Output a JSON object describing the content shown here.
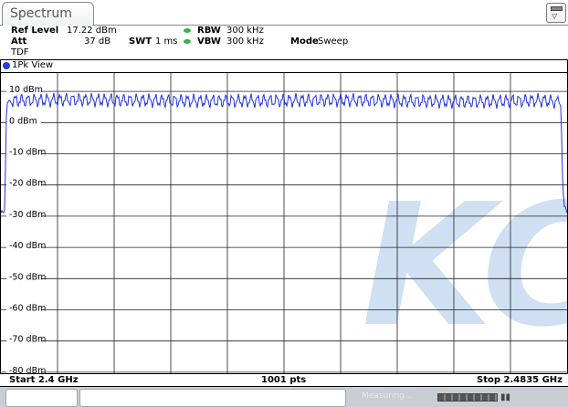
{
  "tab": {
    "title": "Spectrum"
  },
  "settings": {
    "ref_level_label": "Ref Level",
    "ref_level_value": "17.22 dBm",
    "att_label": "Att",
    "att_value": "37 dB",
    "swt_label": "SWT",
    "swt_value": "1 ms",
    "rbw_label": "RBW",
    "rbw_value": "300 kHz",
    "vbw_label": "VBW",
    "vbw_value": "300 kHz",
    "mode_label": "Mode",
    "mode_value": "Sweep",
    "tdf": "TDF"
  },
  "diagram": {
    "title": "1Pk View",
    "trace_color": "#2233dd",
    "watermark": "KC",
    "watermark_color": "#cfe0f2",
    "y_labels": [
      "10 dBm",
      "0 dBm",
      "-10 dBm",
      "-20 dBm",
      "-30 dBm",
      "-40 dBm",
      "-50 dBm",
      "-60 dBm",
      "-70 dBm",
      "-80 dBm"
    ]
  },
  "status": {
    "start": "Start 2.4 GHz",
    "points": "1001 pts",
    "stop": "Stop 2.4835 GHz"
  },
  "bottom_bar": {
    "measuring": "Measuring..."
  },
  "chart_data": {
    "type": "line",
    "x_range": [
      2.4,
      2.4835
    ],
    "x_unit": "GHz",
    "ylim": [
      -85,
      15
    ],
    "y_ticks": [
      10,
      0,
      -10,
      -20,
      -30,
      -40,
      -50,
      -60,
      -70,
      -80
    ],
    "grid": true,
    "series": [
      {
        "points": [
          [
            2.4,
            -29
          ],
          [
            2.4006,
            -28
          ],
          [
            2.40075,
            0
          ],
          [
            2.4009,
            6
          ],
          [
            2.4013,
            7.5
          ],
          [
            2.41,
            7.8
          ],
          [
            2.42,
            7.6
          ],
          [
            2.43,
            7.4
          ],
          [
            2.44,
            7.5
          ],
          [
            2.45,
            7.7
          ],
          [
            2.46,
            7.4
          ],
          [
            2.47,
            7.2
          ],
          [
            2.48,
            7.6
          ],
          [
            2.4822,
            7.0
          ],
          [
            2.4826,
            5
          ],
          [
            2.48285,
            -20
          ],
          [
            2.4831,
            -27
          ],
          [
            2.4835,
            -28.5
          ]
        ]
      }
    ]
  }
}
